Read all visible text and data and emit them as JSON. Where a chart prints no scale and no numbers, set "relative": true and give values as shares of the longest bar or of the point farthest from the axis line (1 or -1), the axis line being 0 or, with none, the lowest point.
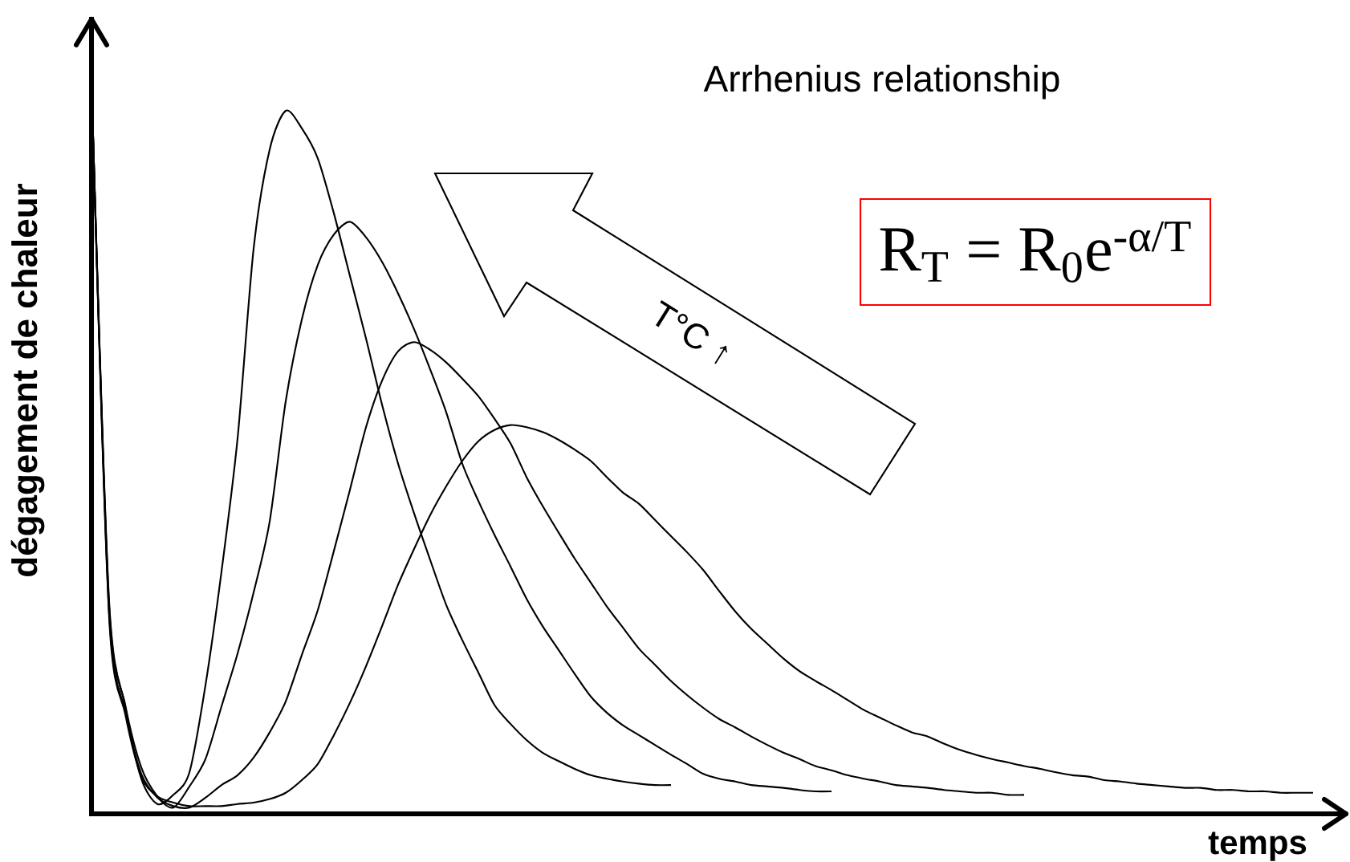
{
  "chart_data": {
    "type": "line",
    "title": "Arrhenius relationship",
    "xlabel": "temps",
    "ylabel": "dégagement de chaleur",
    "relative": true,
    "categories": [
      null,
      null,
      null,
      null,
      null,
      null,
      null,
      null,
      null,
      null,
      null,
      null,
      null,
      null,
      null,
      null,
      null,
      null,
      null,
      null,
      null,
      null,
      null,
      null,
      null,
      null,
      null,
      null,
      null,
      null,
      null,
      null,
      null,
      null,
      null,
      null,
      null,
      null,
      null,
      null,
      null,
      null,
      null,
      null,
      null,
      null,
      null,
      null,
      null,
      null,
      null,
      null,
      null,
      null,
      null,
      null,
      null,
      null,
      null,
      null,
      null,
      null,
      null,
      null,
      null,
      null,
      null,
      null,
      null,
      null,
      null,
      null,
      null,
      null,
      null,
      null,
      null
    ],
    "series": [
      {
        "color": "#000000",
        "values": [
          0.963,
          0.301,
          0.153,
          0.05,
          0.014,
          0.027,
          0.059,
          0.183,
          0.345,
          0.534,
          0.804,
          0.945,
          1,
          0.975,
          0.932,
          0.854,
          0.765,
          0.676,
          0.582,
          0.498,
          0.427,
          0.361,
          0.297,
          0.247,
          0.201,
          0.155,
          0.128,
          0.105,
          0.087,
          0.075,
          0.064,
          0.055,
          0.05,
          0.046,
          0.043,
          0.041,
          0.041,
          null,
          null,
          null,
          null,
          null,
          null,
          null,
          null,
          null,
          null,
          null,
          null,
          null,
          null,
          null,
          null,
          null,
          null,
          null,
          null,
          null,
          null,
          null,
          null,
          null,
          null,
          null,
          null,
          null,
          null,
          null,
          null,
          null,
          null,
          null,
          null,
          null,
          null,
          null,
          null
        ]
      },
      {
        "color": "#000000",
        "values": [
          0.963,
          0.295,
          0.155,
          0.066,
          0.025,
          0.009,
          0.039,
          0.078,
          0.153,
          0.228,
          0.315,
          0.416,
          0.587,
          0.703,
          0.781,
          0.824,
          0.842,
          0.82,
          0.785,
          0.74,
          0.689,
          0.632,
          0.571,
          0.498,
          0.445,
          0.397,
          0.352,
          0.306,
          0.267,
          0.233,
          0.199,
          0.167,
          0.144,
          0.126,
          0.112,
          0.098,
          0.084,
          0.071,
          0.057,
          0.05,
          0.046,
          0.041,
          0.039,
          0.037,
          0.034,
          0.032,
          0.032,
          null,
          null,
          null,
          null,
          null,
          null,
          null,
          null,
          null,
          null,
          null,
          null,
          null,
          null,
          null,
          null,
          null,
          null,
          null,
          null,
          null,
          null,
          null,
          null,
          null,
          null,
          null,
          null,
          null,
          null
        ]
      },
      {
        "color": "#000000",
        "values": [
          0.963,
          0.285,
          0.146,
          0.057,
          0.023,
          0.011,
          0.009,
          0.023,
          0.041,
          0.055,
          0.08,
          0.116,
          0.16,
          0.226,
          0.29,
          0.374,
          0.461,
          0.55,
          0.616,
          0.658,
          0.671,
          0.66,
          0.642,
          0.619,
          0.594,
          0.562,
          0.527,
          0.479,
          0.438,
          0.4,
          0.363,
          0.329,
          0.295,
          0.265,
          0.235,
          0.212,
          0.189,
          0.169,
          0.151,
          0.135,
          0.123,
          0.11,
          0.098,
          0.087,
          0.078,
          0.068,
          0.062,
          0.055,
          0.05,
          0.046,
          0.041,
          0.039,
          0.037,
          0.034,
          0.032,
          0.03,
          0.03,
          0.027,
          0.027,
          null,
          null,
          null,
          null,
          null,
          null,
          null,
          null,
          null,
          null,
          null,
          null,
          null,
          null,
          null,
          null,
          null,
          null
        ]
      },
      {
        "color": "#000000",
        "values": [
          0.963,
          0.279,
          0.142,
          0.053,
          0.025,
          0.016,
          0.011,
          0.011,
          0.011,
          0.014,
          0.016,
          0.021,
          0.03,
          0.048,
          0.071,
          0.112,
          0.158,
          0.21,
          0.267,
          0.326,
          0.377,
          0.425,
          0.466,
          0.502,
          0.53,
          0.546,
          0.553,
          0.55,
          0.543,
          0.532,
          0.518,
          0.502,
          0.479,
          0.457,
          0.441,
          0.418,
          0.395,
          0.372,
          0.347,
          0.317,
          0.288,
          0.263,
          0.242,
          0.221,
          0.203,
          0.189,
          0.176,
          0.162,
          0.148,
          0.137,
          0.126,
          0.116,
          0.11,
          0.1,
          0.091,
          0.084,
          0.078,
          0.073,
          0.068,
          0.064,
          0.059,
          0.055,
          0.053,
          0.048,
          0.046,
          0.043,
          0.041,
          0.039,
          0.037,
          0.037,
          0.034,
          0.034,
          0.032,
          0.032,
          0.03,
          0.03,
          0.03
        ]
      }
    ],
    "annotations": [
      "R$_{T}$ = R$_{0}$e$^{-α/T}$",
      "T°C ↑"
    ]
  }
}
